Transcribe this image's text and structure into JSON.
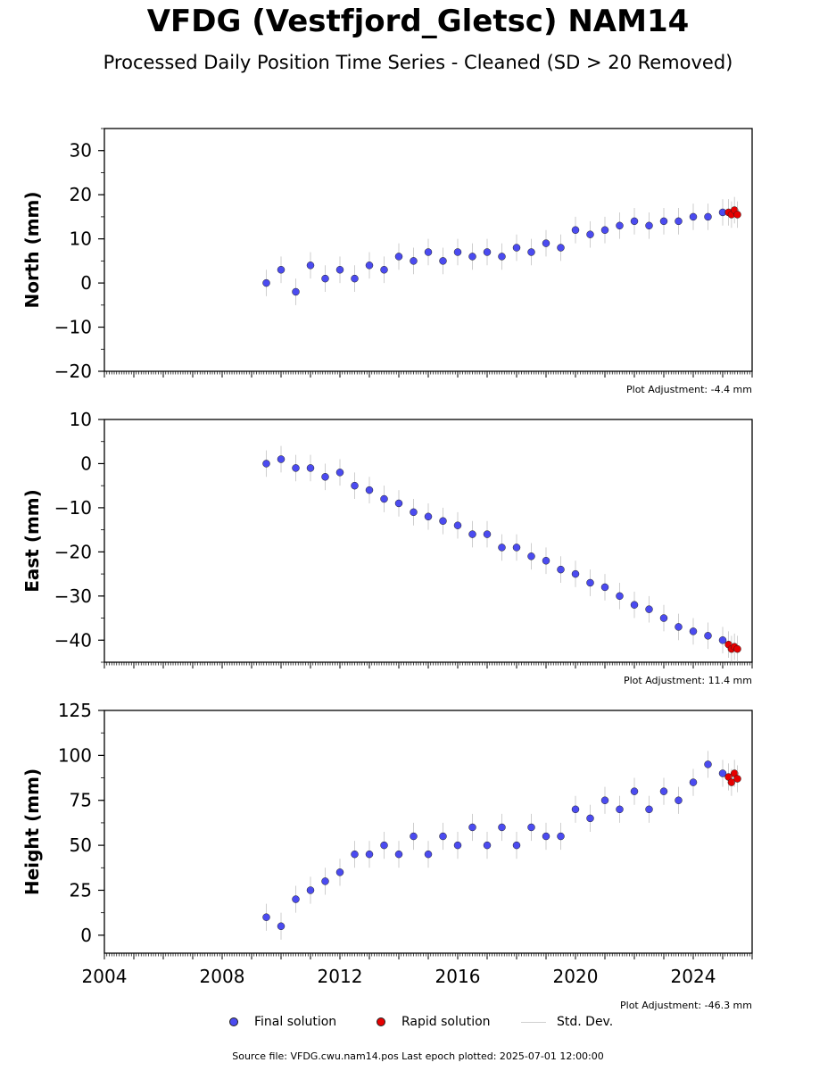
{
  "header": {
    "title": "VFDG (Vestfjord_Gletsc) NAM14",
    "subtitle": "Processed Daily Position Time Series - Cleaned (SD > 20 Removed)"
  },
  "legend": {
    "final_label": "Final solution",
    "rapid_label": "Rapid solution",
    "std_label": "Std. Dev."
  },
  "footer": {
    "source": "Source file: VFDG.cwu.nam14.pos  Last epoch plotted: 2025-07-01 12:00:00"
  },
  "colors": {
    "final": "#4b4bf0",
    "rapid": "#e60000",
    "std_dev": "#9a9a9a"
  },
  "chart_data": [
    {
      "type": "scatter",
      "ylabel": "North (mm)",
      "ylim": [
        -20,
        35
      ],
      "yticks": [
        -20,
        -10,
        0,
        10,
        20,
        30
      ],
      "xlim": [
        2004,
        2026
      ],
      "adjustment": "Plot Adjustment: -4.4 mm",
      "series": [
        {
          "name": "Final solution",
          "x": [
            2009.5,
            2010.0,
            2010.5,
            2011.0,
            2011.5,
            2012.0,
            2012.5,
            2013.0,
            2013.5,
            2014.0,
            2014.5,
            2015.0,
            2015.5,
            2016.0,
            2016.5,
            2017.0,
            2017.5,
            2018.0,
            2018.5,
            2019.0,
            2019.5,
            2020.0,
            2020.5,
            2021.0,
            2021.5,
            2022.0,
            2022.5,
            2023.0,
            2023.5,
            2024.0,
            2024.5,
            2025.0
          ],
          "y": [
            0,
            3,
            -2,
            4,
            1,
            3,
            1,
            4,
            3,
            6,
            5,
            7,
            5,
            7,
            6,
            7,
            6,
            8,
            7,
            9,
            8,
            12,
            11,
            12,
            13,
            14,
            13,
            14,
            14,
            15,
            15,
            16
          ]
        },
        {
          "name": "Rapid solution",
          "x": [
            2025.2,
            2025.3,
            2025.4,
            2025.5
          ],
          "y": [
            16,
            15.5,
            16.5,
            15.5
          ]
        }
      ]
    },
    {
      "type": "scatter",
      "ylabel": "East (mm)",
      "ylim": [
        -45,
        10
      ],
      "yticks": [
        -40,
        -30,
        -20,
        -10,
        0,
        10
      ],
      "xlim": [
        2004,
        2026
      ],
      "adjustment": "Plot Adjustment: 11.4 mm",
      "series": [
        {
          "name": "Final solution",
          "x": [
            2009.5,
            2010.0,
            2010.5,
            2011.0,
            2011.5,
            2012.0,
            2012.5,
            2013.0,
            2013.5,
            2014.0,
            2014.5,
            2015.0,
            2015.5,
            2016.0,
            2016.5,
            2017.0,
            2017.5,
            2018.0,
            2018.5,
            2019.0,
            2019.5,
            2020.0,
            2020.5,
            2021.0,
            2021.5,
            2022.0,
            2022.5,
            2023.0,
            2023.5,
            2024.0,
            2024.5,
            2025.0
          ],
          "y": [
            0,
            1,
            -1,
            -1,
            -3,
            -2,
            -5,
            -6,
            -8,
            -9,
            -11,
            -12,
            -13,
            -14,
            -16,
            -16,
            -19,
            -19,
            -21,
            -22,
            -24,
            -25,
            -27,
            -28,
            -30,
            -32,
            -33,
            -35,
            -37,
            -38,
            -39,
            -40
          ]
        },
        {
          "name": "Rapid solution",
          "x": [
            2025.2,
            2025.3,
            2025.4,
            2025.5
          ],
          "y": [
            -41,
            -42,
            -41.5,
            -42
          ]
        }
      ]
    },
    {
      "type": "scatter",
      "ylabel": "Height (mm)",
      "ylim": [
        -10,
        125
      ],
      "yticks": [
        0,
        25,
        50,
        75,
        100,
        125
      ],
      "xlim": [
        2004,
        2026
      ],
      "xticks": [
        2004,
        2008,
        2012,
        2016,
        2020,
        2024
      ],
      "adjustment": "Plot Adjustment: -46.3 mm",
      "series": [
        {
          "name": "Final solution",
          "x": [
            2009.5,
            2010.0,
            2010.5,
            2011.0,
            2011.5,
            2012.0,
            2012.5,
            2013.0,
            2013.5,
            2014.0,
            2014.5,
            2015.0,
            2015.5,
            2016.0,
            2016.5,
            2017.0,
            2017.5,
            2018.0,
            2018.5,
            2019.0,
            2019.5,
            2020.0,
            2020.5,
            2021.0,
            2021.5,
            2022.0,
            2022.5,
            2023.0,
            2023.5,
            2024.0,
            2024.5,
            2025.0
          ],
          "y": [
            10,
            5,
            20,
            25,
            30,
            35,
            45,
            45,
            50,
            45,
            55,
            45,
            55,
            50,
            60,
            50,
            60,
            50,
            60,
            55,
            55,
            70,
            65,
            75,
            70,
            80,
            70,
            80,
            75,
            85,
            95,
            90
          ]
        },
        {
          "name": "Rapid solution",
          "x": [
            2025.2,
            2025.3,
            2025.4,
            2025.5
          ],
          "y": [
            88,
            85,
            90,
            87
          ]
        }
      ]
    }
  ]
}
